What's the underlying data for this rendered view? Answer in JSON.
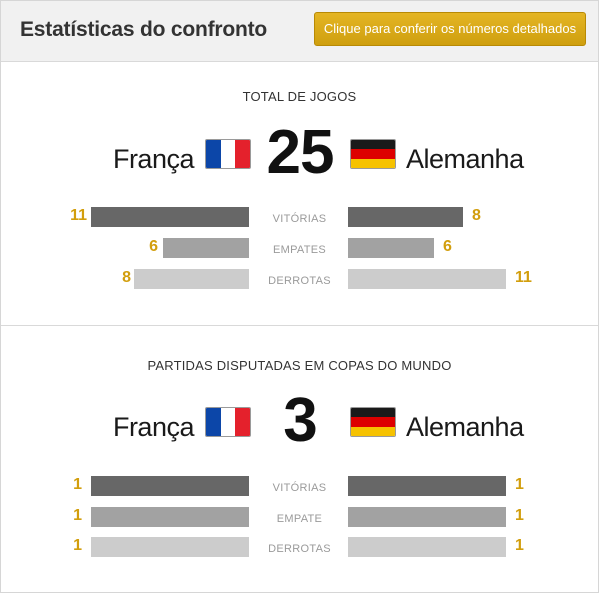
{
  "header": {
    "title": "Estatísticas do confronto",
    "button_label": "Clique para conferir os números detalhados"
  },
  "colors": {
    "accent": "#d29e0d",
    "button": "#dcae1d",
    "bar_wins": "#676767",
    "bar_draws": "#a2a2a2",
    "bar_losses": "#cccccc",
    "france_flag": [
      "#0c46a8",
      "#ffffff",
      "#e4212c"
    ],
    "germany_flag": [
      "#1a1a1a",
      "#dd0000",
      "#f6c200"
    ]
  },
  "sections": [
    {
      "title": "TOTAL DE JOGOS",
      "team_left": "França",
      "team_right": "Alemanha",
      "flag_left": "france-flag",
      "flag_right": "germany-flag",
      "total": "25",
      "rows": [
        {
          "label": "VITÓRIAS",
          "left": 11,
          "right": 8
        },
        {
          "label": "EMPATES",
          "left": 6,
          "right": 6
        },
        {
          "label": "DERROTAS",
          "left": 8,
          "right": 11
        }
      ],
      "bar_scale_max": 11
    },
    {
      "title": "PARTIDAS DISPUTADAS EM COPAS DO MUNDO",
      "team_left": "França",
      "team_right": "Alemanha",
      "flag_left": "france-flag",
      "flag_right": "germany-flag",
      "total": "3",
      "rows": [
        {
          "label": "VITÓRIAS",
          "left": 1,
          "right": 1
        },
        {
          "label": "EMPATE",
          "left": 1,
          "right": 1
        },
        {
          "label": "DERROTAS",
          "left": 1,
          "right": 1
        }
      ],
      "bar_scale_max": 1
    }
  ]
}
